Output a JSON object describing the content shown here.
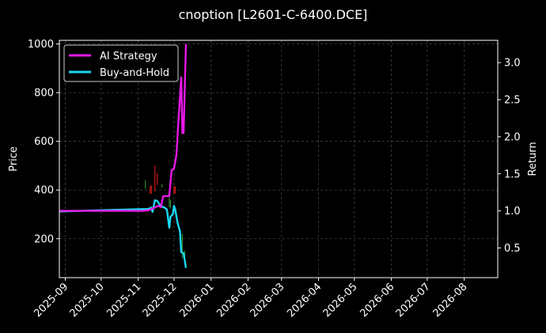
{
  "chart_data": {
    "type": "line",
    "title": "cnoption [L2601-C-6400.DCE]",
    "ylabel_left": "Price",
    "ylabel_right": "Return",
    "x_range": [
      "2025-08-27",
      "2026-08-29"
    ],
    "ylim_left": [
      40,
      1015
    ],
    "ylim_right": [
      0.1,
      3.3
    ],
    "x_ticks": [
      "2025-09",
      "2025-10",
      "2025-11",
      "2025-12",
      "2026-01",
      "2026-02",
      "2026-03",
      "2026-04",
      "2026-05",
      "2026-06",
      "2026-07",
      "2026-08"
    ],
    "y_ticks_left": [
      200,
      400,
      600,
      800,
      1000
    ],
    "y_ticks_right": [
      "0.5",
      "1.0",
      "1.5",
      "2.0",
      "2.5",
      "3.0"
    ],
    "grid": true,
    "legend": "top-left",
    "series": [
      {
        "name": "AI Strategy",
        "axis": "right",
        "color": "#e619e6",
        "points": [
          [
            "2025-08-27",
            1.0
          ],
          [
            "2025-11-05",
            1.0
          ],
          [
            "2025-11-10",
            1.01
          ],
          [
            "2025-11-14",
            1.04
          ],
          [
            "2025-11-18",
            1.07
          ],
          [
            "2025-11-20",
            1.05
          ],
          [
            "2025-11-22",
            1.2
          ],
          [
            "2025-11-25",
            1.2
          ],
          [
            "2025-11-27",
            1.2
          ],
          [
            "2025-11-29",
            1.55
          ],
          [
            "2025-12-01",
            1.57
          ],
          [
            "2025-12-03",
            1.75
          ],
          [
            "2025-12-05",
            2.3
          ],
          [
            "2025-12-07",
            2.8
          ],
          [
            "2025-12-08",
            2.05
          ],
          [
            "2025-12-09",
            2.05
          ],
          [
            "2025-12-11",
            3.25
          ]
        ]
      },
      {
        "name": "Buy-and-Hold",
        "axis": "left",
        "color": "#19d8f0",
        "points": [
          [
            "2025-08-27",
            312
          ],
          [
            "2025-11-08",
            322
          ],
          [
            "2025-11-10",
            323
          ],
          [
            "2025-11-12",
            328
          ],
          [
            "2025-11-13",
            310
          ],
          [
            "2025-11-15",
            358
          ],
          [
            "2025-11-17",
            355
          ],
          [
            "2025-11-19",
            340
          ],
          [
            "2025-11-21",
            332
          ],
          [
            "2025-11-23",
            328
          ],
          [
            "2025-11-25",
            320
          ],
          [
            "2025-11-27",
            245
          ],
          [
            "2025-11-28",
            290
          ],
          [
            "2025-11-30",
            300
          ],
          [
            "2025-12-01",
            335
          ],
          [
            "2025-12-02",
            320
          ],
          [
            "2025-12-04",
            265
          ],
          [
            "2025-12-06",
            230
          ],
          [
            "2025-12-07",
            145
          ],
          [
            "2025-12-09",
            140
          ],
          [
            "2025-12-11",
            80
          ]
        ]
      }
    ],
    "signals": [
      {
        "date": "2025-11-07",
        "low": 405,
        "high": 440,
        "color": "#2e8b2e"
      },
      {
        "date": "2025-11-11",
        "low": 385,
        "high": 415,
        "color": "#d11a1a"
      },
      {
        "date": "2025-11-12",
        "low": 385,
        "high": 420,
        "color": "#d11a1a"
      },
      {
        "date": "2025-11-15",
        "low": 395,
        "high": 500,
        "color": "#d11a1a"
      },
      {
        "date": "2025-11-17",
        "low": 420,
        "high": 470,
        "color": "#d11a1a"
      },
      {
        "date": "2025-11-21",
        "low": 410,
        "high": 425,
        "color": "#2e8b2e"
      },
      {
        "date": "2025-11-27",
        "low": 330,
        "high": 370,
        "color": "#2e8b2e"
      },
      {
        "date": "2025-11-28",
        "low": 325,
        "high": 360,
        "color": "#2e8b2e"
      },
      {
        "date": "2025-12-01",
        "low": 385,
        "high": 415,
        "color": "#d11a1a"
      },
      {
        "date": "2025-12-02",
        "low": 385,
        "high": 415,
        "color": "#d11a1a"
      },
      {
        "date": "2025-12-08",
        "low": 120,
        "high": 220,
        "color": "#2e8b2e"
      },
      {
        "date": "2025-12-10",
        "low": 110,
        "high": 150,
        "color": "#2e8b2e"
      }
    ]
  }
}
